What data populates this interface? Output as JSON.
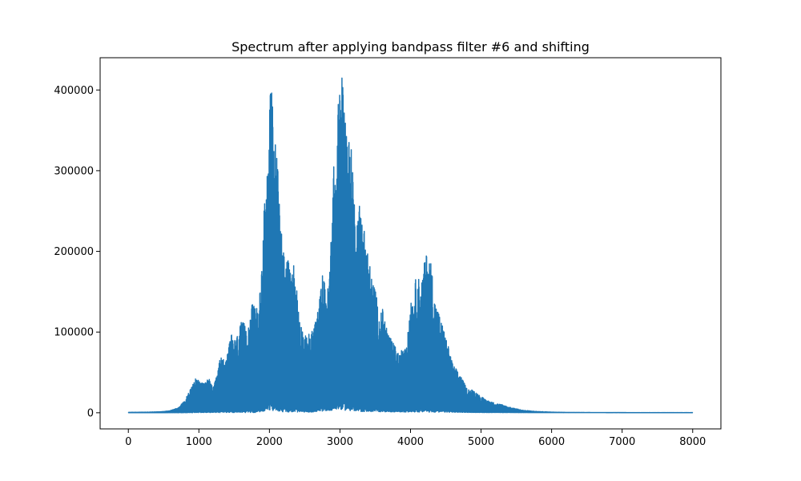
{
  "chart_data": {
    "type": "line",
    "title": "Spectrum after applying bandpass filter #6 and shifting",
    "xlabel": "",
    "ylabel": "",
    "xlim": [
      -400,
      8400
    ],
    "ylim": [
      -20000,
      440000
    ],
    "x_ticks": [
      0,
      1000,
      2000,
      3000,
      4000,
      5000,
      6000,
      7000,
      8000
    ],
    "y_ticks": [
      0,
      100000,
      200000,
      300000,
      400000
    ],
    "grid": false,
    "legend": "none",
    "series": [
      {
        "color": "#1f77b4",
        "envelope_upper": [
          [
            0,
            500
          ],
          [
            300,
            800
          ],
          [
            500,
            1500
          ],
          [
            600,
            3000
          ],
          [
            700,
            6000
          ],
          [
            800,
            15000
          ],
          [
            880,
            30000
          ],
          [
            950,
            42000
          ],
          [
            1050,
            38000
          ],
          [
            1150,
            42000
          ],
          [
            1200,
            30000
          ],
          [
            1250,
            45000
          ],
          [
            1300,
            68000
          ],
          [
            1400,
            70000
          ],
          [
            1450,
            98000
          ],
          [
            1520,
            90000
          ],
          [
            1600,
            112000
          ],
          [
            1700,
            110000
          ],
          [
            1760,
            137000
          ],
          [
            1820,
            130000
          ],
          [
            1880,
            155000
          ],
          [
            1920,
            262000
          ],
          [
            1960,
            280000
          ],
          [
            2000,
            405000
          ],
          [
            2040,
            398000
          ],
          [
            2070,
            350000
          ],
          [
            2120,
            306000
          ],
          [
            2170,
            230000
          ],
          [
            2220,
            188000
          ],
          [
            2250,
            194000
          ],
          [
            2300,
            175000
          ],
          [
            2350,
            187000
          ],
          [
            2400,
            145000
          ],
          [
            2450,
            110000
          ],
          [
            2500,
            95000
          ],
          [
            2600,
            100000
          ],
          [
            2700,
            132000
          ],
          [
            2750,
            173000
          ],
          [
            2820,
            148000
          ],
          [
            2860,
            185000
          ],
          [
            2900,
            305000
          ],
          [
            2950,
            310000
          ],
          [
            2980,
            398000
          ],
          [
            3030,
            430000
          ],
          [
            3060,
            382000
          ],
          [
            3100,
            360000
          ],
          [
            3130,
            340000
          ],
          [
            3180,
            318000
          ],
          [
            3220,
            230000
          ],
          [
            3280,
            263000
          ],
          [
            3320,
            245000
          ],
          [
            3380,
            210000
          ],
          [
            3450,
            167000
          ],
          [
            3500,
            160000
          ],
          [
            3550,
            118000
          ],
          [
            3600,
            130000
          ],
          [
            3700,
            95000
          ],
          [
            3780,
            83000
          ],
          [
            3850,
            70000
          ],
          [
            3900,
            88000
          ],
          [
            3960,
            95000
          ],
          [
            4000,
            145000
          ],
          [
            4050,
            140000
          ],
          [
            4080,
            175000
          ],
          [
            4150,
            160000
          ],
          [
            4200,
            188000
          ],
          [
            4230,
            199000
          ],
          [
            4300,
            185000
          ],
          [
            4330,
            145000
          ],
          [
            4400,
            125000
          ],
          [
            4500,
            95000
          ],
          [
            4600,
            60000
          ],
          [
            4700,
            48000
          ],
          [
            4800,
            30000
          ],
          [
            4900,
            28000
          ],
          [
            5000,
            20000
          ],
          [
            5100,
            15000
          ],
          [
            5200,
            12000
          ],
          [
            5300,
            10000
          ],
          [
            5400,
            7000
          ],
          [
            5500,
            5000
          ],
          [
            5600,
            3000
          ],
          [
            5800,
            1500
          ],
          [
            6000,
            800
          ],
          [
            6200,
            400
          ],
          [
            7000,
            200
          ],
          [
            8000,
            200
          ]
        ],
        "envelope_lower": [
          [
            0,
            200
          ],
          [
            800,
            100
          ],
          [
            1000,
            200
          ],
          [
            1800,
            300
          ],
          [
            2000,
            3000
          ],
          [
            2200,
            1000
          ],
          [
            2600,
            800
          ],
          [
            3000,
            4000
          ],
          [
            3200,
            1500
          ],
          [
            4000,
            800
          ],
          [
            5000,
            300
          ],
          [
            8000,
            100
          ]
        ]
      }
    ]
  }
}
